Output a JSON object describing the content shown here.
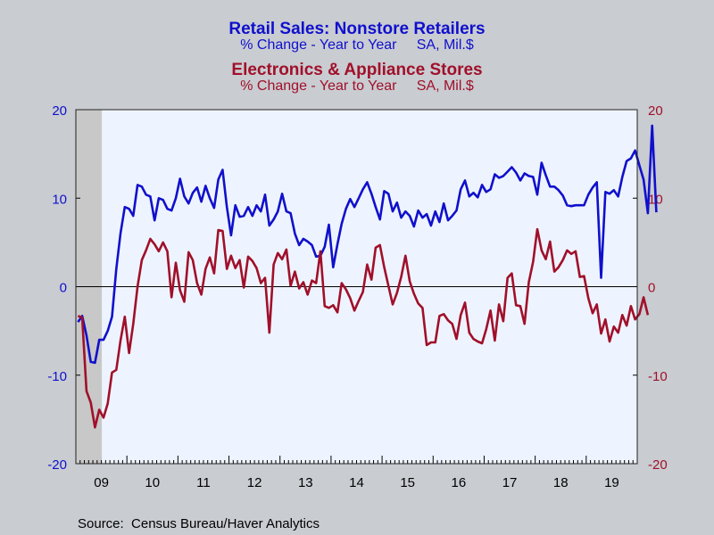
{
  "chart_data": {
    "type": "line",
    "titles": [
      {
        "title": "Retail Sales: Nonstore Retailers",
        "subtitle": "% Change - Year to Year     SA, Mil.$",
        "color": "#1010cc"
      },
      {
        "title": "Electronics & Appliance Stores",
        "subtitle": "% Change - Year to Year     SA, Mil.$",
        "color": "#a0102a"
      }
    ],
    "source": "Source:  Census Bureau/Haver Analytics",
    "x_range": [
      "2009-01",
      "2019-12"
    ],
    "x_tick_labels": [
      "09",
      "10",
      "11",
      "12",
      "13",
      "14",
      "15",
      "16",
      "17",
      "18",
      "19"
    ],
    "ylim": [
      -20,
      20
    ],
    "y_ticks": [
      -20,
      -10,
      0,
      10,
      20
    ],
    "y2lim": [
      -20,
      20
    ],
    "y2_ticks": [
      -20,
      -10,
      0,
      10,
      20
    ],
    "recession_band": [
      "2009-01",
      "2009-06"
    ],
    "grid": false,
    "zero_line": true,
    "series": [
      {
        "axis": "left",
        "color": "#1010cc",
        "start": "2009-01",
        "values": [
          -4,
          -3.3,
          -5.5,
          -8.5,
          -8.6,
          -6,
          -6,
          -5,
          -3.4,
          2,
          6,
          9,
          8.8,
          8,
          11.5,
          11.3,
          10.4,
          10.2,
          7.5,
          10,
          9.8,
          8.8,
          8.6,
          10,
          12.2,
          10.2,
          9.4,
          10.6,
          11.2,
          9.6,
          11.4,
          10,
          8.9,
          12.1,
          13.2,
          9,
          5.8,
          9.2,
          7.9,
          8,
          9,
          8,
          9.2,
          8.5,
          10.4,
          6.9,
          7.6,
          8.5,
          10.5,
          8.5,
          8.3,
          6,
          4.7,
          5.4,
          5.1,
          4.7,
          3.4,
          3.5,
          4.5,
          7,
          2.2,
          4.8,
          7.1,
          8.8,
          9.9,
          9,
          10,
          11,
          11.8,
          10.5,
          9,
          7.6,
          10.8,
          10.5,
          8.5,
          9.5,
          7.8,
          8.5,
          8,
          6.8,
          8.6,
          7.8,
          8.2,
          6.9,
          8.5,
          7.3,
          9.4,
          7.5,
          8,
          8.6,
          11,
          12,
          10.2,
          10.6,
          10.1,
          11.5,
          10.7,
          11,
          12.7,
          12.3,
          12.5,
          13,
          13.5,
          12.9,
          12,
          12.8,
          12.5,
          12.4,
          10.4,
          14,
          12.6,
          11.3,
          11.3,
          10.9,
          10.3,
          9.2,
          9.1,
          9.2,
          9.2,
          9.2,
          10.4,
          11.2,
          11.8,
          1,
          10.7,
          10.5,
          10.9,
          10.2,
          12.4,
          14.2,
          14.5,
          15.4,
          13.7,
          12.1,
          8.3,
          18.2,
          8.4
        ]
      },
      {
        "axis": "right",
        "color": "#a0102a",
        "start": "2009-01",
        "values": [
          -3.3,
          -3.5,
          -11.8,
          -13.1,
          -15.9,
          -13.9,
          -14.8,
          -13.2,
          -9.7,
          -9.4,
          -6.1,
          -3.4,
          -7.5,
          -4.2,
          0,
          3,
          4.1,
          5.4,
          4.8,
          4,
          5,
          4,
          -1.2,
          2.7,
          -0.4,
          -1.7,
          3.9,
          3,
          0.4,
          -0.9,
          2,
          3.3,
          1.5,
          6.4,
          6.3,
          2,
          3.5,
          2.1,
          3,
          -0.1,
          3.4,
          2.9,
          2.1,
          0.4,
          1,
          -5.2,
          2.5,
          3.8,
          3.1,
          4.2,
          0.1,
          1.7,
          -0.2,
          0.5,
          -0.9,
          0.7,
          0.4,
          4,
          -2.2,
          -2.4,
          -2.1,
          -2.9,
          0.4,
          -0.3,
          -1.3,
          -2.7,
          -1.6,
          -0.6,
          2.5,
          0.8,
          4.4,
          4.7,
          2.2,
          0.1,
          -2,
          -0.7,
          1.1,
          3.5,
          0.6,
          -0.8,
          -1.9,
          -2.4,
          -6.6,
          -6.3,
          -6.3,
          -3.3,
          -3.1,
          -3.8,
          -4.2,
          -5.9,
          -3.2,
          -1.8,
          -5.2,
          -5.9,
          -6.2,
          -6.4,
          -4.8,
          -2.7,
          -6.1,
          -2,
          -3.9,
          1,
          1.5,
          -2.1,
          -2.2,
          -4.2,
          0.5,
          2.8,
          6.5,
          4.1,
          3.1,
          5.1,
          1.7,
          2.2,
          3,
          4.1,
          3.7,
          4,
          1.1,
          1.2,
          -1.3,
          -3,
          -2,
          -5.3,
          -3.7,
          -6.2,
          -4.5,
          -5.2,
          -3.2,
          -4.4,
          -2.2,
          -3.7,
          -3.1,
          -1.2,
          -3.2
        ]
      }
    ]
  }
}
